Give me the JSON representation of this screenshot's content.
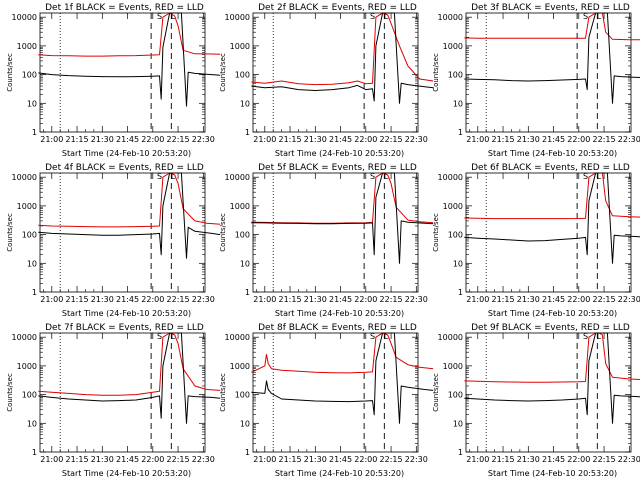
{
  "chart_data": [
    {
      "type": "line",
      "title": "Det 1f BLACK = Events, RED = LLD",
      "xlabel": "Start Time (24-Feb-10 20:53:20)",
      "ylabel": "Counts/sec",
      "xticks": [
        "21:00",
        "21:15",
        "21:30",
        "21:45",
        "22:00",
        "22:15",
        "22:30"
      ],
      "yticks": [
        "1",
        "10",
        "100",
        "1000",
        "10000"
      ],
      "xlim": [
        "20:53",
        "22:31"
      ],
      "ylim": [
        1,
        14000
      ],
      "scale_y": "log",
      "vlines_dotted": [
        "21:05"
      ],
      "vlines_dashed": [
        "21:59",
        "22:11"
      ],
      "markers": {
        "S": "22:04",
        "L": "22:12"
      },
      "series": [
        {
          "color": "#e00000",
          "x": [
            -8,
            0,
            10,
            20,
            30,
            40,
            50,
            60,
            64,
            66,
            70,
            73,
            75,
            78,
            85,
            95,
            100
          ],
          "y": [
            490,
            460,
            450,
            440,
            440,
            450,
            460,
            480,
            490,
            10000,
            14000,
            11000,
            5000,
            700,
            530,
            520,
            510
          ]
        },
        {
          "color": "#000000",
          "x": [
            -8,
            0,
            10,
            20,
            30,
            40,
            50,
            60,
            64,
            65,
            66,
            70,
            73,
            77,
            80,
            81,
            85,
            95,
            100
          ],
          "y": [
            115,
            100,
            92,
            88,
            85,
            84,
            85,
            88,
            90,
            14,
            900,
            14000,
            14000,
            14000,
            8,
            120,
            110,
            100,
            95
          ]
        }
      ]
    },
    {
      "type": "line",
      "title": "Det 2f BLACK = Events, RED = LLD",
      "xlabel": "Start Time (24-Feb-10 20:53:20)",
      "ylabel": "Counts/sec",
      "xticks": [
        "21:00",
        "21:15",
        "21:30",
        "21:45",
        "22:00",
        "22:15",
        "22:30"
      ],
      "yticks": [
        "1",
        "10",
        "100",
        "1000",
        "10000"
      ],
      "xlim": [
        "20:53",
        "22:31"
      ],
      "ylim": [
        1,
        14000
      ],
      "scale_y": "log",
      "vlines_dotted": [
        "21:05"
      ],
      "vlines_dashed": [
        "21:59",
        "22:11"
      ],
      "markers": {
        "S": "22:04",
        "L": "22:12"
      },
      "series": [
        {
          "color": "#e00000",
          "x": [
            -8,
            0,
            10,
            20,
            30,
            40,
            50,
            55,
            60,
            64,
            66,
            70,
            73,
            75,
            80,
            85,
            92,
            100
          ],
          "y": [
            55,
            50,
            60,
            48,
            45,
            46,
            52,
            60,
            48,
            50,
            10000,
            14000,
            12000,
            6000,
            1000,
            200,
            70,
            60
          ]
        },
        {
          "color": "#000000",
          "x": [
            -8,
            0,
            10,
            20,
            30,
            40,
            50,
            55,
            60,
            64,
            65,
            66,
            70,
            73,
            77,
            80,
            81,
            85,
            95,
            100
          ],
          "y": [
            40,
            35,
            38,
            30,
            28,
            30,
            35,
            42,
            30,
            32,
            12,
            1000,
            14000,
            14000,
            14000,
            10,
            50,
            45,
            38,
            35
          ]
        }
      ]
    },
    {
      "type": "line",
      "title": "Det 3f BLACK = Events, RED = LLD",
      "xlabel": "Start Time (24-Feb-10 20:53:20)",
      "ylabel": "Counts/sec",
      "xticks": [
        "21:00",
        "21:15",
        "21:30",
        "21:45",
        "22:00",
        "22:15",
        "22:30"
      ],
      "yticks": [
        "1",
        "10",
        "100",
        "1000",
        "10000"
      ],
      "xlim": [
        "20:53",
        "22:31"
      ],
      "ylim": [
        1,
        14000
      ],
      "scale_y": "log",
      "vlines_dotted": [
        "21:05"
      ],
      "vlines_dashed": [
        "21:59",
        "22:11"
      ],
      "markers": {
        "S": "22:04",
        "L": "22:12"
      },
      "series": [
        {
          "color": "#e00000",
          "x": [
            -8,
            0,
            10,
            20,
            30,
            40,
            50,
            60,
            64,
            66,
            70,
            72,
            74,
            76,
            80,
            90,
            100
          ],
          "y": [
            1900,
            1850,
            1850,
            1850,
            1850,
            1850,
            1850,
            1850,
            1850,
            10000,
            14000,
            14000,
            14000,
            3000,
            1700,
            1650,
            1650
          ]
        },
        {
          "color": "#000000",
          "x": [
            -8,
            0,
            10,
            20,
            30,
            40,
            50,
            60,
            64,
            65,
            66,
            70,
            73,
            77,
            80,
            81,
            85,
            95,
            100
          ],
          "y": [
            70,
            68,
            66,
            62,
            60,
            62,
            65,
            68,
            70,
            30,
            2000,
            14000,
            14000,
            14000,
            10,
            90,
            85,
            80,
            78
          ]
        }
      ]
    },
    {
      "type": "line",
      "title": "Det 4f BLACK = Events, RED = LLD",
      "xlabel": "Start Time (24-Feb-10 20:53:20)",
      "ylabel": "Counts/sec",
      "xticks": [
        "21:00",
        "21:15",
        "21:30",
        "21:45",
        "22:00",
        "22:15",
        "22:30"
      ],
      "yticks": [
        "1",
        "10",
        "100",
        "1000",
        "10000"
      ],
      "xlim": [
        "20:53",
        "22:31"
      ],
      "ylim": [
        1,
        14000
      ],
      "scale_y": "log",
      "vlines_dotted": [
        "21:05"
      ],
      "vlines_dashed": [
        "21:59",
        "22:11"
      ],
      "markers": {
        "S": "22:04",
        "L": "22:12"
      },
      "series": [
        {
          "color": "#e00000",
          "x": [
            -8,
            0,
            10,
            20,
            30,
            40,
            50,
            60,
            64,
            66,
            70,
            73,
            75,
            78,
            85,
            92,
            100
          ],
          "y": [
            210,
            200,
            195,
            190,
            185,
            185,
            190,
            195,
            200,
            10000,
            14000,
            12000,
            6000,
            800,
            300,
            250,
            230
          ]
        },
        {
          "color": "#000000",
          "x": [
            -8,
            0,
            10,
            20,
            30,
            40,
            50,
            60,
            64,
            65,
            66,
            70,
            73,
            77,
            80,
            81,
            85,
            95,
            100
          ],
          "y": [
            120,
            110,
            105,
            100,
            95,
            95,
            100,
            105,
            110,
            20,
            1000,
            14000,
            14000,
            14000,
            15,
            180,
            130,
            110,
            100
          ]
        }
      ]
    },
    {
      "type": "line",
      "title": "Det 5f BLACK = Events, RED = LLD",
      "xlabel": "Start Time (24-Feb-10 20:53:20)",
      "ylabel": "Counts/sec",
      "xticks": [
        "21:00",
        "21:15",
        "21:30",
        "21:45",
        "22:00",
        "22:15",
        "22:30"
      ],
      "yticks": [
        "1",
        "10",
        "100",
        "1000",
        "10000"
      ],
      "xlim": [
        "20:53",
        "22:31"
      ],
      "ylim": [
        1,
        14000
      ],
      "scale_y": "log",
      "vlines_dotted": [
        "21:05"
      ],
      "vlines_dashed": [
        "21:59",
        "22:11"
      ],
      "markers": {
        "S": "22:04",
        "L": "22:12"
      },
      "series": [
        {
          "color": "#e00000",
          "x": [
            -8,
            0,
            10,
            20,
            30,
            40,
            50,
            60,
            64,
            66,
            70,
            73,
            75,
            78,
            85,
            92,
            100
          ],
          "y": [
            270,
            265,
            260,
            255,
            250,
            250,
            255,
            260,
            265,
            10000,
            14000,
            12000,
            6000,
            900,
            320,
            280,
            260
          ]
        },
        {
          "color": "#000000",
          "x": [
            -8,
            0,
            10,
            20,
            30,
            40,
            50,
            60,
            64,
            65,
            66,
            70,
            73,
            77,
            80,
            81,
            85,
            95,
            100
          ],
          "y": [
            260,
            255,
            250,
            245,
            240,
            240,
            245,
            250,
            255,
            20,
            2000,
            14000,
            14000,
            14000,
            10,
            300,
            270,
            250,
            240
          ]
        }
      ]
    },
    {
      "type": "line",
      "title": "Det 6f BLACK = Events, RED = LLD",
      "xlabel": "Start Time (24-Feb-10 20:53:20)",
      "ylabel": "Counts/sec",
      "xticks": [
        "21:00",
        "21:15",
        "21:30",
        "21:45",
        "22:00",
        "22:15",
        "22:30"
      ],
      "yticks": [
        "1",
        "10",
        "100",
        "1000",
        "10000"
      ],
      "xlim": [
        "20:53",
        "22:31"
      ],
      "ylim": [
        1,
        14000
      ],
      "scale_y": "log",
      "vlines_dotted": [
        "21:05"
      ],
      "vlines_dashed": [
        "21:59",
        "22:11"
      ],
      "markers": {
        "S": "22:04",
        "L": "22:12"
      },
      "series": [
        {
          "color": "#e00000",
          "x": [
            -8,
            0,
            10,
            20,
            30,
            40,
            50,
            60,
            64,
            66,
            70,
            72,
            74,
            76,
            80,
            90,
            100
          ],
          "y": [
            380,
            370,
            360,
            360,
            360,
            360,
            360,
            365,
            370,
            10000,
            14000,
            14000,
            14000,
            1500,
            450,
            420,
            400
          ]
        },
        {
          "color": "#000000",
          "x": [
            -8,
            0,
            10,
            20,
            30,
            40,
            50,
            60,
            64,
            65,
            66,
            70,
            73,
            77,
            80,
            81,
            85,
            95,
            100
          ],
          "y": [
            80,
            75,
            70,
            65,
            60,
            62,
            68,
            75,
            80,
            20,
            1500,
            14000,
            14000,
            14000,
            10,
            95,
            90,
            85,
            80
          ]
        }
      ]
    },
    {
      "type": "line",
      "title": "Det 7f BLACK = Events, RED = LLD",
      "xlabel": "Start Time (24-Feb-10 20:53:20)",
      "ylabel": "Counts/sec",
      "xticks": [
        "21:00",
        "21:15",
        "21:30",
        "21:45",
        "22:00",
        "22:15",
        "22:30"
      ],
      "yticks": [
        "1",
        "10",
        "100",
        "1000",
        "10000"
      ],
      "xlim": [
        "20:53",
        "22:31"
      ],
      "ylim": [
        1,
        14000
      ],
      "scale_y": "log",
      "vlines_dotted": [
        "21:05"
      ],
      "vlines_dashed": [
        "21:59",
        "22:11"
      ],
      "markers": {
        "S": "22:04",
        "L": "22:12"
      },
      "series": [
        {
          "color": "#e00000",
          "x": [
            -8,
            0,
            10,
            20,
            30,
            40,
            50,
            60,
            64,
            66,
            70,
            73,
            75,
            78,
            85,
            92,
            100
          ],
          "y": [
            130,
            120,
            110,
            100,
            95,
            95,
            100,
            120,
            130,
            10000,
            14000,
            12000,
            6000,
            800,
            200,
            150,
            140
          ]
        },
        {
          "color": "#000000",
          "x": [
            -8,
            0,
            10,
            20,
            30,
            40,
            50,
            60,
            64,
            65,
            66,
            70,
            73,
            77,
            80,
            81,
            85,
            95,
            100
          ],
          "y": [
            90,
            80,
            70,
            65,
            60,
            62,
            65,
            80,
            90,
            15,
            1000,
            14000,
            14000,
            14000,
            10,
            90,
            85,
            80,
            75
          ]
        }
      ]
    },
    {
      "type": "line",
      "title": "Det 8f BLACK = Events, RED = LLD",
      "xlabel": "Start Time (24-Feb-10 20:53:20)",
      "ylabel": "Counts/sec",
      "xticks": [
        "21:00",
        "21:15",
        "21:30",
        "21:45",
        "22:00",
        "22:15",
        "22:30"
      ],
      "yticks": [
        "1",
        "10",
        "100",
        "1000",
        "10000"
      ],
      "xlim": [
        "20:53",
        "22:31"
      ],
      "ylim": [
        1,
        14000
      ],
      "scale_y": "log",
      "vlines_dotted": [
        "21:05"
      ],
      "vlines_dashed": [
        "21:59",
        "22:11"
      ],
      "markers": {
        "S": "22:04",
        "L": "22:12"
      },
      "series": [
        {
          "color": "#e00000",
          "x": [
            -8,
            0,
            1,
            2,
            4,
            10,
            20,
            30,
            40,
            50,
            60,
            64,
            66,
            70,
            73,
            75,
            78,
            85,
            92,
            100
          ],
          "y": [
            600,
            1000,
            2500,
            1200,
            800,
            700,
            650,
            600,
            580,
            570,
            600,
            620,
            10000,
            14000,
            12000,
            6000,
            2000,
            1100,
            900,
            800
          ]
        },
        {
          "color": "#000000",
          "x": [
            -8,
            0,
            1,
            2,
            4,
            10,
            20,
            30,
            40,
            50,
            60,
            64,
            65,
            66,
            70,
            73,
            77,
            80,
            81,
            85,
            95,
            100
          ],
          "y": [
            120,
            110,
            300,
            150,
            110,
            70,
            65,
            60,
            58,
            57,
            60,
            62,
            20,
            1500,
            14000,
            14000,
            14000,
            10,
            200,
            180,
            150,
            140
          ]
        }
      ]
    },
    {
      "type": "line",
      "title": "Det 9f BLACK = Events, RED = LLD",
      "xlabel": "Start Time (24-Feb-10 20:53:20)",
      "ylabel": "Counts/sec",
      "xticks": [
        "21:00",
        "21:15",
        "21:30",
        "21:45",
        "22:00",
        "22:15",
        "22:30"
      ],
      "yticks": [
        "1",
        "10",
        "100",
        "1000",
        "10000"
      ],
      "xlim": [
        "20:53",
        "22:31"
      ],
      "ylim": [
        1,
        14000
      ],
      "scale_y": "log",
      "vlines_dotted": [
        "21:05"
      ],
      "vlines_dashed": [
        "21:59",
        "22:11"
      ],
      "markers": {
        "S": "22:04",
        "L": "22:12"
      },
      "series": [
        {
          "color": "#e00000",
          "x": [
            -8,
            0,
            10,
            20,
            30,
            40,
            50,
            60,
            64,
            66,
            70,
            72,
            74,
            76,
            80,
            90,
            100
          ],
          "y": [
            300,
            290,
            280,
            275,
            270,
            270,
            275,
            280,
            285,
            10000,
            14000,
            14000,
            12000,
            1200,
            400,
            350,
            330
          ]
        },
        {
          "color": "#000000",
          "x": [
            -8,
            0,
            10,
            20,
            30,
            40,
            50,
            60,
            64,
            65,
            66,
            70,
            73,
            77,
            80,
            81,
            85,
            95,
            100
          ],
          "y": [
            75,
            70,
            65,
            62,
            60,
            62,
            65,
            70,
            75,
            20,
            1500,
            14000,
            14000,
            14000,
            10,
            95,
            90,
            85,
            80
          ]
        }
      ]
    }
  ]
}
